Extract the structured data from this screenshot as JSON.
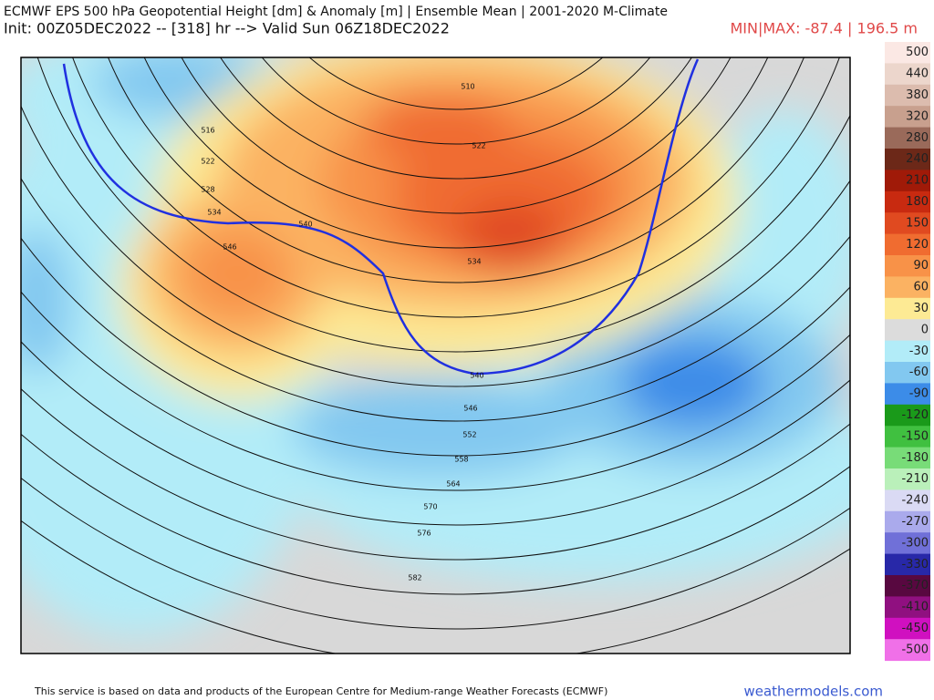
{
  "header": {
    "title": "ECMWF EPS 500 hPa Geopotential Height [dm] & Anomaly [m] | Ensemble Mean | 2001-2020 M-Climate",
    "subtitle": "Init: 00Z05DEC2022 -- [318] hr --> Valid Sun 06Z18DEC2022",
    "minmax": "MIN|MAX: -87.4 | 196.5 m"
  },
  "map": {
    "contour_labels": [
      516,
      522,
      528,
      534,
      540,
      546,
      510,
      522,
      534,
      540,
      546,
      552,
      558,
      564,
      570,
      576,
      582
    ]
  },
  "colorbar": [
    {
      "value": 500,
      "color": "#fbe8e4"
    },
    {
      "value": 440,
      "color": "#ecd6cc"
    },
    {
      "value": 380,
      "color": "#dcbcae"
    },
    {
      "value": 320,
      "color": "#c8a08e"
    },
    {
      "value": 280,
      "color": "#9a6a5a"
    },
    {
      "value": 240,
      "color": "#6c2818"
    },
    {
      "value": 210,
      "color": "#a01a08"
    },
    {
      "value": 180,
      "color": "#c82a10"
    },
    {
      "value": 150,
      "color": "#e04a20"
    },
    {
      "value": 120,
      "color": "#f06c30"
    },
    {
      "value": 90,
      "color": "#f89248"
    },
    {
      "value": 60,
      "color": "#fbb262"
    },
    {
      "value": 30,
      "color": "#fdea94"
    },
    {
      "value": 0,
      "color": "#dcdcdc"
    },
    {
      "value": -30,
      "color": "#b2ecf8"
    },
    {
      "value": -60,
      "color": "#82c8f0"
    },
    {
      "value": -90,
      "color": "#3c8ce8"
    },
    {
      "value": -120,
      "color": "#1a9a1a"
    },
    {
      "value": -150,
      "color": "#40c040"
    },
    {
      "value": -180,
      "color": "#78dc78"
    },
    {
      "value": -210,
      "color": "#baf0ba"
    },
    {
      "value": -240,
      "color": "#dadaf4"
    },
    {
      "value": -270,
      "color": "#aaaaec"
    },
    {
      "value": -300,
      "color": "#7070d8"
    },
    {
      "value": -330,
      "color": "#2828a8"
    },
    {
      "value": -370,
      "color": "#580840"
    },
    {
      "value": -410,
      "color": "#901080"
    },
    {
      "value": -450,
      "color": "#d010c0"
    },
    {
      "value": -500,
      "color": "#f070e8"
    }
  ],
  "footer": {
    "credit": "This service is based on data and products of the European Centre for Medium-range Weather Forecasts (ECMWF)",
    "site": "weathermodels.com"
  }
}
